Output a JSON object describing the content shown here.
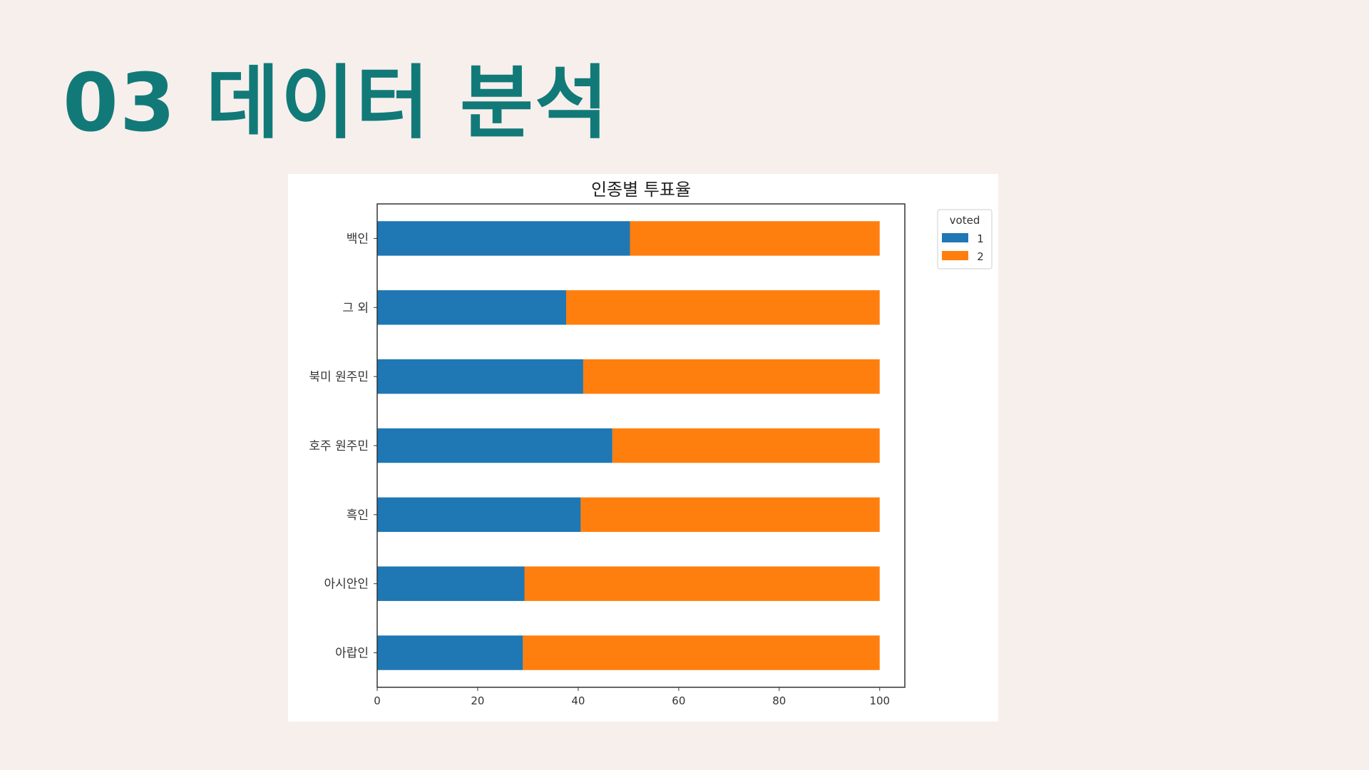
{
  "slide": {
    "title": "03 데이터 분석"
  },
  "chart_data": {
    "type": "bar",
    "orientation": "horizontal",
    "stacked": true,
    "title": "인종별 투표율",
    "categories": [
      "백인",
      "그 외",
      "북미 원주민",
      "호주 원주민",
      "흑인",
      "아시안인",
      "아랍인"
    ],
    "series": [
      {
        "name": "1",
        "color": "#1f77b4",
        "values": [
          50.3,
          37.6,
          41.0,
          46.8,
          40.5,
          29.3,
          29.0
        ]
      },
      {
        "name": "2",
        "color": "#ff7f0e",
        "values": [
          49.7,
          62.4,
          59.0,
          53.2,
          59.5,
          70.7,
          71.0
        ]
      }
    ],
    "xlim": [
      0,
      105
    ],
    "xticks": [
      0,
      20,
      40,
      60,
      80,
      100
    ],
    "xlabel": "",
    "ylabel": "",
    "legend": {
      "title": "voted",
      "placement": "upper-right-outside"
    },
    "grid": false
  }
}
